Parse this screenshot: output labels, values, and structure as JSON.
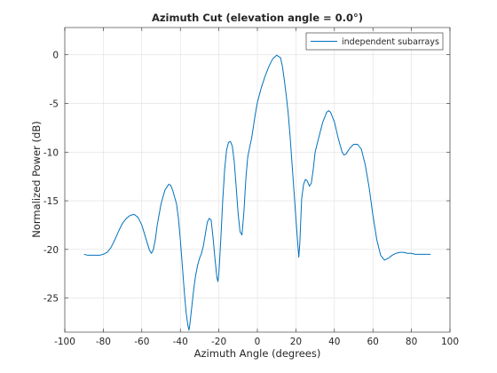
{
  "chart_data": {
    "type": "line",
    "title": "Azimuth Cut (elevation angle = 0.0°)",
    "xlabel": "Azimuth Angle (degrees)",
    "ylabel": "Normalized Power (dB)",
    "xlim": [
      -100,
      100
    ],
    "ylim": [
      -28.5,
      2.8
    ],
    "xticks": [
      -100,
      -80,
      -60,
      -40,
      -20,
      0,
      20,
      40,
      60,
      80,
      100
    ],
    "yticks": [
      0,
      -5,
      -10,
      -15,
      -20,
      -25
    ],
    "grid": true,
    "legend_position": "top-right",
    "series": [
      {
        "name": "independent subarrays",
        "color": "#0072bd",
        "points": [
          [
            -90,
            -20.5
          ],
          [
            -88,
            -20.6
          ],
          [
            -85,
            -20.6
          ],
          [
            -82,
            -20.6
          ],
          [
            -80,
            -20.5
          ],
          [
            -78,
            -20.3
          ],
          [
            -76,
            -19.8
          ],
          [
            -74,
            -19.0
          ],
          [
            -72,
            -18.1
          ],
          [
            -70,
            -17.3
          ],
          [
            -68,
            -16.8
          ],
          [
            -66,
            -16.5
          ],
          [
            -64,
            -16.4
          ],
          [
            -62,
            -16.7
          ],
          [
            -60,
            -17.5
          ],
          [
            -58,
            -18.8
          ],
          [
            -56,
            -20.1
          ],
          [
            -55,
            -20.4
          ],
          [
            -54,
            -20.0
          ],
          [
            -53,
            -19.0
          ],
          [
            -52,
            -17.5
          ],
          [
            -50,
            -15.3
          ],
          [
            -48,
            -13.9
          ],
          [
            -46,
            -13.3
          ],
          [
            -45,
            -13.4
          ],
          [
            -44,
            -13.9
          ],
          [
            -42,
            -15.3
          ],
          [
            -41,
            -16.8
          ],
          [
            -40,
            -19.0
          ],
          [
            -39,
            -21.6
          ],
          [
            -38,
            -24.2
          ],
          [
            -37,
            -26.5
          ],
          [
            -36,
            -27.9
          ],
          [
            -35.5,
            -28.3
          ],
          [
            -35,
            -27.6
          ],
          [
            -34,
            -25.8
          ],
          [
            -33,
            -24.0
          ],
          [
            -32,
            -22.6
          ],
          [
            -31,
            -21.6
          ],
          [
            -30,
            -20.9
          ],
          [
            -29,
            -20.4
          ],
          [
            -28,
            -19.6
          ],
          [
            -27,
            -18.4
          ],
          [
            -26,
            -17.2
          ],
          [
            -25,
            -16.8
          ],
          [
            -24,
            -17.0
          ],
          [
            -23,
            -18.8
          ],
          [
            -22,
            -21.0
          ],
          [
            -21,
            -22.9
          ],
          [
            -20.5,
            -23.3
          ],
          [
            -20,
            -22.5
          ],
          [
            -19,
            -19.0
          ],
          [
            -18,
            -15.0
          ],
          [
            -17,
            -11.8
          ],
          [
            -16,
            -9.8
          ],
          [
            -15,
            -9.0
          ],
          [
            -14,
            -8.9
          ],
          [
            -13,
            -9.4
          ],
          [
            -12,
            -11.0
          ],
          [
            -11,
            -13.6
          ],
          [
            -10,
            -16.3
          ],
          [
            -9,
            -18.2
          ],
          [
            -8,
            -18.5
          ],
          [
            -7,
            -16.2
          ],
          [
            -6,
            -12.8
          ],
          [
            -5,
            -10.5
          ],
          [
            -4,
            -9.5
          ],
          [
            -3,
            -8.6
          ],
          [
            -2,
            -7.3
          ],
          [
            -1,
            -6.0
          ],
          [
            0,
            -4.9
          ],
          [
            2,
            -3.4
          ],
          [
            4,
            -2.2
          ],
          [
            6,
            -1.2
          ],
          [
            8,
            -0.4
          ],
          [
            10,
            -0.05
          ],
          [
            12,
            -0.3
          ],
          [
            13,
            -1.2
          ],
          [
            14,
            -2.6
          ],
          [
            15,
            -4.2
          ],
          [
            16,
            -6.0
          ],
          [
            17,
            -8.4
          ],
          [
            18,
            -11.2
          ],
          [
            19,
            -14.0
          ],
          [
            20,
            -16.8
          ],
          [
            21,
            -19.5
          ],
          [
            21.5,
            -20.8
          ],
          [
            22,
            -19.5
          ],
          [
            23,
            -14.8
          ],
          [
            24,
            -13.3
          ],
          [
            25,
            -12.8
          ],
          [
            26,
            -13.0
          ],
          [
            27,
            -13.5
          ],
          [
            28,
            -13.2
          ],
          [
            29,
            -11.8
          ],
          [
            30,
            -10.0
          ],
          [
            32,
            -8.4
          ],
          [
            34,
            -6.9
          ],
          [
            36,
            -5.9
          ],
          [
            37,
            -5.75
          ],
          [
            38,
            -5.9
          ],
          [
            40,
            -6.9
          ],
          [
            42,
            -8.6
          ],
          [
            44,
            -10.0
          ],
          [
            45,
            -10.3
          ],
          [
            46,
            -10.2
          ],
          [
            48,
            -9.6
          ],
          [
            50,
            -9.2
          ],
          [
            52,
            -9.2
          ],
          [
            54,
            -9.7
          ],
          [
            56,
            -11.3
          ],
          [
            58,
            -13.6
          ],
          [
            60,
            -16.5
          ],
          [
            62,
            -19.0
          ],
          [
            64,
            -20.6
          ],
          [
            66,
            -21.1
          ],
          [
            68,
            -20.9
          ],
          [
            70,
            -20.6
          ],
          [
            72,
            -20.4
          ],
          [
            74,
            -20.3
          ],
          [
            76,
            -20.3
          ],
          [
            78,
            -20.4
          ],
          [
            80,
            -20.4
          ],
          [
            82,
            -20.5
          ],
          [
            84,
            -20.5
          ],
          [
            86,
            -20.5
          ],
          [
            88,
            -20.5
          ],
          [
            90,
            -20.5
          ]
        ]
      }
    ]
  }
}
